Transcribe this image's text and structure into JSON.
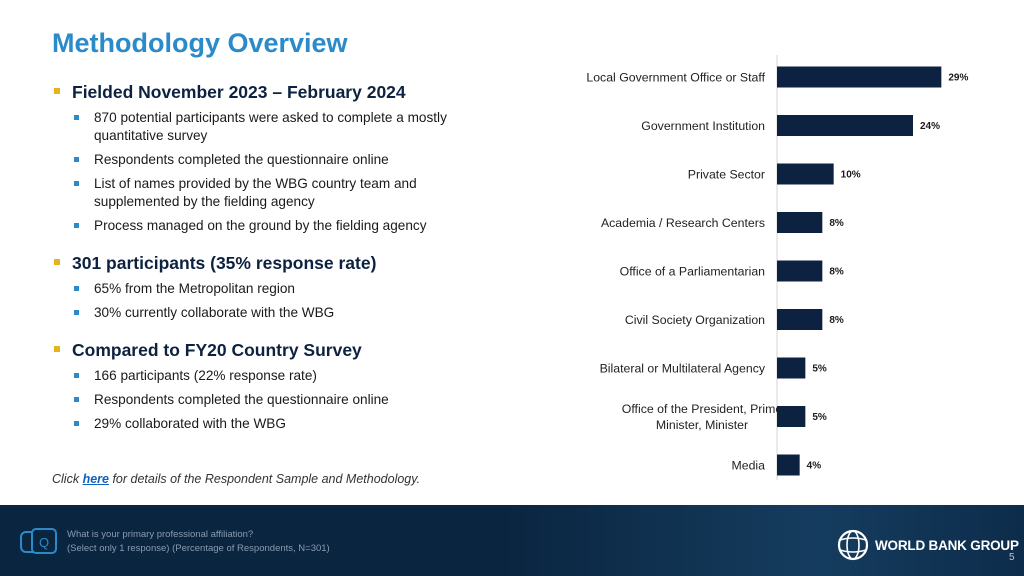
{
  "title": "Methodology Overview",
  "sections": [
    {
      "heading": "Fielded November 2023 – February 2024",
      "items": [
        "870 potential participants were asked to complete a mostly quantitative survey",
        "Respondents completed the questionnaire online",
        "List of names provided by the WBG country team and supplemented by the fielding agency",
        "Process managed on the ground by the fielding agency"
      ]
    },
    {
      "heading": "301 participants (35% response rate)",
      "items": [
        "65% from the Metropolitan region",
        "30% currently collaborate with the WBG"
      ]
    },
    {
      "heading": "Compared to FY20 Country Survey",
      "items": [
        "166 participants (22% response rate)",
        "Respondents completed the questionnaire online",
        "29% collaborated with the WBG"
      ]
    }
  ],
  "note": {
    "prefix": "Click ",
    "link_text": "here",
    "suffix": " for details of the Respondent Sample and Methodology."
  },
  "chart_data": {
    "type": "bar",
    "orientation": "horizontal",
    "categories": [
      "Local Government Office or Staff",
      "Government Institution",
      "Private Sector",
      "Academia / Research Centers",
      "Office of a Parliamentarian",
      "Civil Society Organization",
      "Bilateral or Multilateral Agency",
      "Office of the President, Prime Minister, Minister",
      "Media"
    ],
    "category_lines": [
      [
        "Local Government Office or Staff"
      ],
      [
        "Government Institution"
      ],
      [
        "Private Sector"
      ],
      [
        "Academia / Research Centers"
      ],
      [
        "Office of a Parliamentarian"
      ],
      [
        "Civil Society Organization"
      ],
      [
        "Bilateral or Multilateral Agency"
      ],
      [
        "Office of the President, Prime",
        "Minister, Minister"
      ],
      [
        "Media"
      ]
    ],
    "values": [
      29,
      24,
      10,
      8,
      8,
      8,
      5,
      5,
      4
    ],
    "value_labels": [
      "29%",
      "24%",
      "10%",
      "8%",
      "8%",
      "8%",
      "5%",
      "5%",
      "4%"
    ],
    "xlim": [
      0,
      30
    ],
    "bar_color": "#0d2240",
    "title": "",
    "xlabel": "",
    "ylabel": ""
  },
  "footer": {
    "question_line1": "What is your primary professional affiliation?",
    "question_line2": "(Select only 1 response) (Percentage of Respondents, N=301)",
    "q_icon_letter": "Q",
    "logo_text": "WORLD BANK GROUP",
    "page_number": "5"
  },
  "colors": {
    "title": "#2a8bc8",
    "heading_bullet": "#e8b21b",
    "sub_bullet": "#2a8bc8",
    "footer_bg": "#0a2540"
  }
}
